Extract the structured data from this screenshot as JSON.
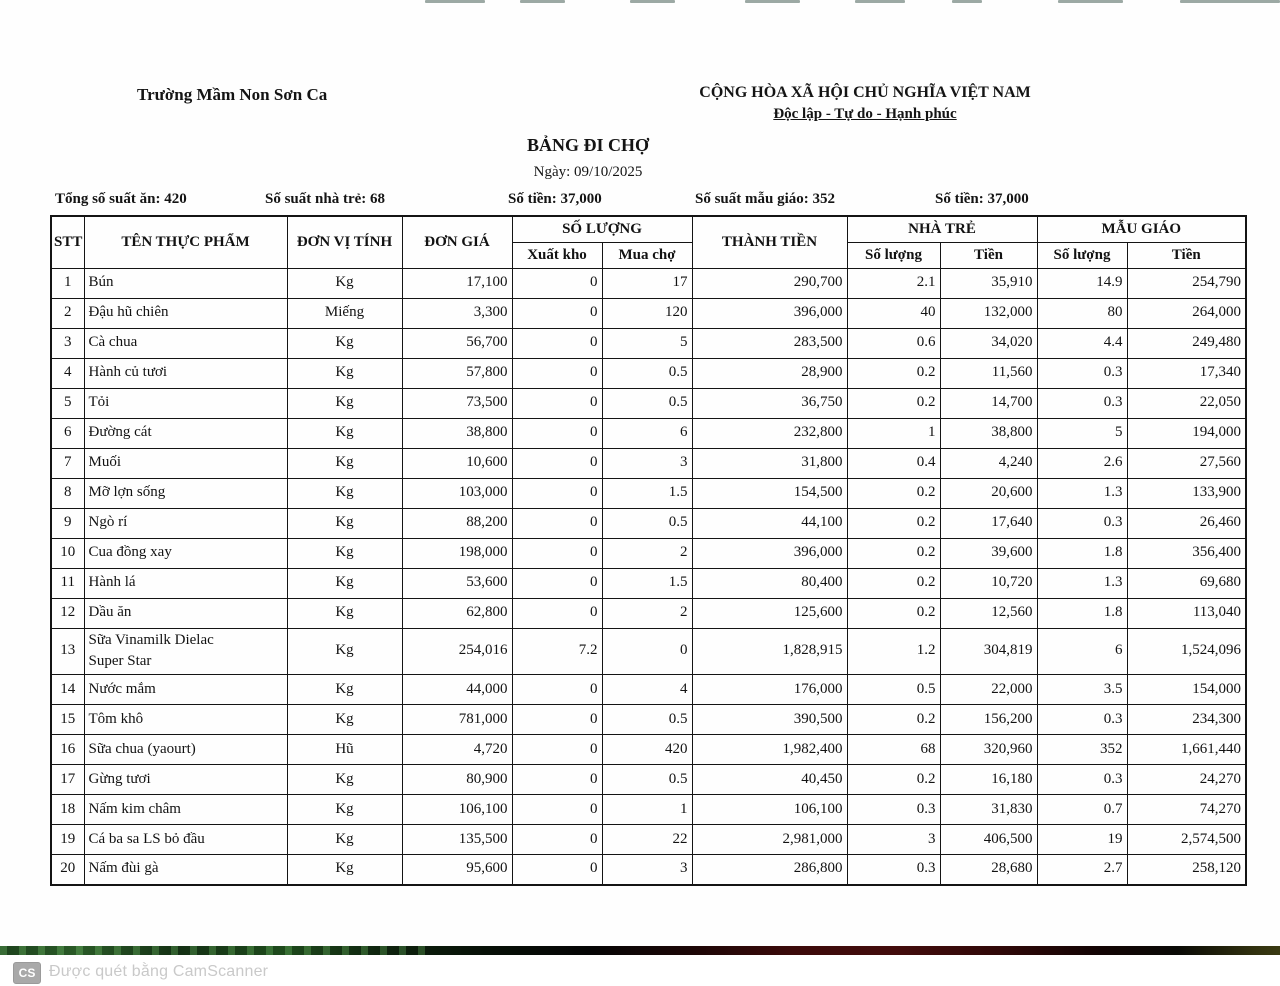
{
  "header": {
    "school": "Trường Mầm Non Sơn Ca",
    "motto1": "CỘNG HÒA XÃ HỘI CHỦ NGHĨA VIỆT NAM",
    "motto2": "Độc lập - Tự do - Hạnh phúc",
    "title": "BẢNG ĐI CHỢ",
    "date": "Ngày: 09/10/2025"
  },
  "summary": {
    "total_servings": "Tổng số suất ăn: 420",
    "nursery_servings": "Số suất nhà trẻ: 68",
    "nursery_amount": "Số tiền: 37,000",
    "kindergarten_servings": "Số suất mẫu giáo: 352",
    "kindergarten_amount": "Số tiền: 37,000"
  },
  "table": {
    "headers": {
      "stt": "STT",
      "name": "TÊN THỰC PHẨM",
      "unit": "ĐƠN VỊ TÍNH",
      "price": "ĐƠN GIÁ",
      "quantity_group": "SỐ LƯỢNG",
      "quantity_sub": [
        "Xuất kho",
        "Mua chợ"
      ],
      "total": "THÀNH TIỀN",
      "nursery_group": "NHÀ TRẺ",
      "nursery_sub": [
        "Số lượng",
        "Tiền"
      ],
      "kindergarten_group": "MẪU GIÁO",
      "kindergarten_sub": [
        "Số lượng",
        "Tiền"
      ]
    },
    "col_keys": [
      "stt",
      "name",
      "unit",
      "price",
      "xuatkho",
      "muacho",
      "thanhtien",
      "nt_sl",
      "nt_tien",
      "mg_sl",
      "mg_tien"
    ],
    "rows": [
      [
        "1",
        "Bún",
        "Kg",
        "17,100",
        "0",
        "17",
        "290,700",
        "2.1",
        "35,910",
        "14.9",
        "254,790"
      ],
      [
        "2",
        "Đậu hũ chiên",
        "Miếng",
        "3,300",
        "0",
        "120",
        "396,000",
        "40",
        "132,000",
        "80",
        "264,000"
      ],
      [
        "3",
        "Cà chua",
        "Kg",
        "56,700",
        "0",
        "5",
        "283,500",
        "0.6",
        "34,020",
        "4.4",
        "249,480"
      ],
      [
        "4",
        "Hành củ tươi",
        "Kg",
        "57,800",
        "0",
        "0.5",
        "28,900",
        "0.2",
        "11,560",
        "0.3",
        "17,340"
      ],
      [
        "5",
        "Tỏi",
        "Kg",
        "73,500",
        "0",
        "0.5",
        "36,750",
        "0.2",
        "14,700",
        "0.3",
        "22,050"
      ],
      [
        "6",
        "Đường cát",
        "Kg",
        "38,800",
        "0",
        "6",
        "232,800",
        "1",
        "38,800",
        "5",
        "194,000"
      ],
      [
        "7",
        "Muối",
        "Kg",
        "10,600",
        "0",
        "3",
        "31,800",
        "0.4",
        "4,240",
        "2.6",
        "27,560"
      ],
      [
        "8",
        "Mỡ lợn sống",
        "Kg",
        "103,000",
        "0",
        "1.5",
        "154,500",
        "0.2",
        "20,600",
        "1.3",
        "133,900"
      ],
      [
        "9",
        "Ngò rí",
        "Kg",
        "88,200",
        "0",
        "0.5",
        "44,100",
        "0.2",
        "17,640",
        "0.3",
        "26,460"
      ],
      [
        "10",
        "Cua đồng xay",
        "Kg",
        "198,000",
        "0",
        "2",
        "396,000",
        "0.2",
        "39,600",
        "1.8",
        "356,400"
      ],
      [
        "11",
        "Hành lá",
        "Kg",
        "53,600",
        "0",
        "1.5",
        "80,400",
        "0.2",
        "10,720",
        "1.3",
        "69,680"
      ],
      [
        "12",
        "Dầu ăn",
        "Kg",
        "62,800",
        "0",
        "2",
        "125,600",
        "0.2",
        "12,560",
        "1.8",
        "113,040"
      ],
      [
        "13",
        "Sữa Vinamilk Dielac\nSuper Star",
        "Kg",
        "254,016",
        "7.2",
        "0",
        "1,828,915",
        "1.2",
        "304,819",
        "6",
        "1,524,096"
      ],
      [
        "14",
        "Nước mắm",
        "Kg",
        "44,000",
        "0",
        "4",
        "176,000",
        "0.5",
        "22,000",
        "3.5",
        "154,000"
      ],
      [
        "15",
        "Tôm khô",
        "Kg",
        "781,000",
        "0",
        "0.5",
        "390,500",
        "0.2",
        "156,200",
        "0.3",
        "234,300"
      ],
      [
        "16",
        "Sữa chua (yaourt)",
        "Hũ",
        "4,720",
        "0",
        "420",
        "1,982,400",
        "68",
        "320,960",
        "352",
        "1,661,440"
      ],
      [
        "17",
        "Gừng tươi",
        "Kg",
        "80,900",
        "0",
        "0.5",
        "40,450",
        "0.2",
        "16,180",
        "0.3",
        "24,270"
      ],
      [
        "18",
        "Nấm kim châm",
        "Kg",
        "106,100",
        "0",
        "1",
        "106,100",
        "0.3",
        "31,830",
        "0.7",
        "74,270"
      ],
      [
        "19",
        "Cá ba sa LS bỏ đầu",
        "Kg",
        "135,500",
        "0",
        "22",
        "2,981,000",
        "3",
        "406,500",
        "19",
        "2,574,500"
      ],
      [
        "20",
        "Nấm đùi gà",
        "Kg",
        "95,600",
        "0",
        "3",
        "286,800",
        "0.3",
        "28,680",
        "2.7",
        "258,120"
      ]
    ]
  },
  "footer": {
    "badge": "CS",
    "text": "Được quét bằng CamScanner"
  }
}
